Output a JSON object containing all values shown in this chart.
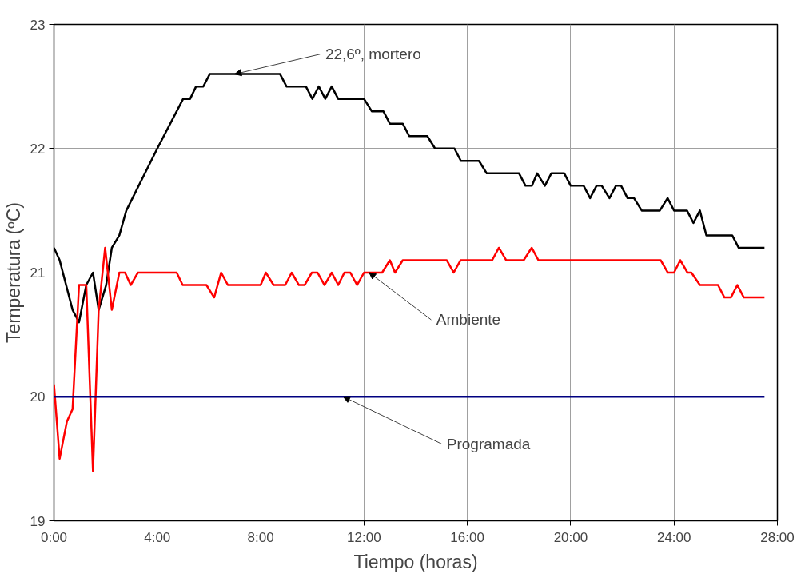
{
  "chart_data": {
    "type": "line",
    "xlabel": "Tiempo (horas)",
    "ylabel": "Temperatura (ºC)",
    "xlim": [
      0,
      28
    ],
    "ylim": [
      19,
      23
    ],
    "xticks": [
      {
        "value": 0,
        "label": "0:00"
      },
      {
        "value": 4,
        "label": "4:00"
      },
      {
        "value": 8,
        "label": "8:00"
      },
      {
        "value": 12,
        "label": "12:00"
      },
      {
        "value": 16,
        "label": "16:00"
      },
      {
        "value": 20,
        "label": "20:00"
      },
      {
        "value": 24,
        "label": "24:00"
      },
      {
        "value": 28,
        "label": "28:00"
      }
    ],
    "yticks": [
      19,
      20,
      21,
      22,
      23
    ],
    "grid": true,
    "marker": "none",
    "line_style": "solid",
    "series": [
      {
        "color": "#000000",
        "x": [
          0,
          0.22,
          0.72,
          0.97,
          1.25,
          1.51,
          1.73,
          2.02,
          2.24,
          2.53,
          2.8,
          4.0,
          5.0,
          5.27,
          5.5,
          5.78,
          6.03,
          8.75,
          9.0,
          9.75,
          10.0,
          10.25,
          10.5,
          10.75,
          11.0,
          12.0,
          12.3,
          12.75,
          13.0,
          13.5,
          13.75,
          14.45,
          14.75,
          15.5,
          15.75,
          16.45,
          16.75,
          18.0,
          18.25,
          18.5,
          18.7,
          19.0,
          19.25,
          19.75,
          20.0,
          20.5,
          20.75,
          21.0,
          21.2,
          21.5,
          21.75,
          21.95,
          22.2,
          22.45,
          22.75,
          23.45,
          23.75,
          24.0,
          24.5,
          24.75,
          25.0,
          25.25,
          26.25,
          26.5,
          27.5
        ],
        "values": [
          21.2,
          21.1,
          20.7,
          20.6,
          20.9,
          21.0,
          20.7,
          20.9,
          21.2,
          21.3,
          21.5,
          22.0,
          22.4,
          22.4,
          22.5,
          22.5,
          22.6,
          22.6,
          22.5,
          22.5,
          22.4,
          22.5,
          22.4,
          22.5,
          22.4,
          22.4,
          22.3,
          22.3,
          22.2,
          22.2,
          22.1,
          22.1,
          22.0,
          22.0,
          21.9,
          21.9,
          21.8,
          21.8,
          21.7,
          21.7,
          21.8,
          21.7,
          21.8,
          21.8,
          21.7,
          21.7,
          21.6,
          21.7,
          21.7,
          21.6,
          21.7,
          21.7,
          21.6,
          21.6,
          21.5,
          21.5,
          21.6,
          21.5,
          21.5,
          21.4,
          21.5,
          21.3,
          21.3,
          21.2,
          21.2
        ]
      },
      {
        "color": "#ff0000",
        "x": [
          0,
          0.22,
          0.5,
          0.72,
          0.97,
          1.25,
          1.51,
          1.73,
          1.98,
          2.24,
          2.53,
          2.75,
          2.97,
          3.25,
          4.75,
          4.98,
          5.9,
          6.2,
          6.47,
          6.73,
          8.0,
          8.2,
          8.5,
          8.95,
          9.2,
          9.48,
          9.7,
          9.98,
          10.2,
          10.47,
          10.75,
          11.0,
          11.24,
          11.47,
          11.73,
          12.0,
          12.7,
          13.0,
          13.2,
          13.5,
          15.2,
          15.47,
          15.74,
          16.96,
          17.22,
          17.5,
          18.18,
          18.49,
          18.75,
          23.48,
          23.76,
          24.0,
          24.24,
          24.52,
          24.67,
          25.0,
          25.7,
          25.95,
          26.2,
          26.45,
          26.7,
          27.5
        ],
        "values": [
          20.1,
          19.5,
          19.8,
          19.9,
          20.9,
          20.9,
          19.4,
          20.7,
          21.2,
          20.7,
          21.0,
          21.0,
          20.9,
          21.0,
          21.0,
          20.9,
          20.9,
          20.8,
          21.0,
          20.9,
          20.9,
          21.0,
          20.9,
          20.9,
          21.0,
          20.9,
          20.9,
          21.0,
          21.0,
          20.9,
          21.0,
          20.9,
          21.0,
          21.0,
          20.9,
          21.0,
          21.0,
          21.1,
          21.0,
          21.1,
          21.1,
          21.0,
          21.1,
          21.1,
          21.2,
          21.1,
          21.1,
          21.2,
          21.1,
          21.1,
          21.0,
          21.0,
          21.1,
          21.0,
          21.0,
          20.9,
          20.9,
          20.8,
          20.8,
          20.9,
          20.8,
          20.8
        ]
      },
      {
        "color": "#000080",
        "x": [
          0,
          27.5
        ],
        "values": [
          20,
          20
        ]
      }
    ],
    "annotations": [
      {
        "text": "22,6º, mortero",
        "x": 7.0,
        "y": 22.6
      },
      {
        "text": "Ambiente",
        "x": 12.2,
        "y": 21.0
      },
      {
        "text": "Programada",
        "x": 11.2,
        "y": 20.0
      }
    ]
  }
}
